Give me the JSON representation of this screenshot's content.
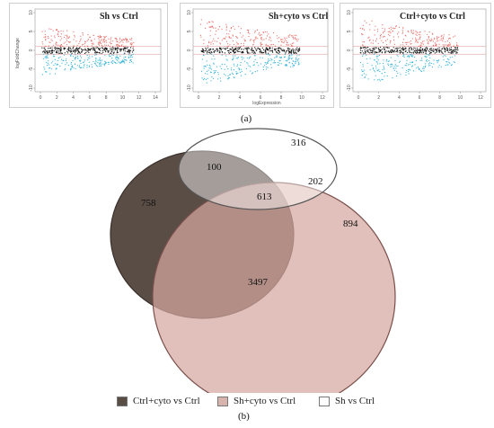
{
  "panel_a": {
    "label": "(a)",
    "y_axis_label": "logFoldChange",
    "x_axis_label": "logExpression",
    "plots": [
      {
        "title": "Sh vs Ctrl",
        "x_ticks": [
          "0",
          "2",
          "4",
          "6",
          "8",
          "10",
          "12",
          "14"
        ],
        "y_ticks": [
          "10",
          "5",
          "0",
          "-5",
          "-10"
        ],
        "x_range": [
          0,
          14
        ],
        "y_range": [
          -10,
          10
        ]
      },
      {
        "title": "Sh+cyto vs Ctrl",
        "x_ticks": [
          "0",
          "2",
          "4",
          "6",
          "8",
          "10",
          "12"
        ],
        "y_ticks": [
          "10",
          "5",
          "0",
          "-5",
          "-10"
        ],
        "x_range": [
          0,
          12
        ],
        "y_range": [
          -10,
          10
        ]
      },
      {
        "title": "Ctrl+cyto vs Ctrl",
        "x_ticks": [
          "0",
          "2",
          "4",
          "6",
          "8",
          "10",
          "12"
        ],
        "y_ticks": [
          "10",
          "5",
          "0",
          "-5",
          "-10"
        ],
        "x_range": [
          0,
          12
        ],
        "y_range": [
          -10,
          10
        ]
      }
    ],
    "colors": {
      "up": "#e8706a",
      "down": "#35b3d8",
      "ns": "#111111",
      "threshold_line": "#d58c8c"
    }
  },
  "panel_b": {
    "label": "(b)",
    "venn_counts": {
      "ctrl_cyto_only": "758",
      "sh_only": "316",
      "sh_cyto_only": "894",
      "ctrl_cyto_and_sh_only": "100",
      "sh_and_sh_cyto_only": "202",
      "all_three": "613",
      "ctrl_cyto_and_sh_cyto_only": "3497"
    },
    "legend": [
      {
        "label": "Ctrl+cyto vs Ctrl",
        "color": "#5a4d46"
      },
      {
        "label": "Sh+cyto vs Ctrl",
        "color": "#d6b4ad"
      },
      {
        "label": "Sh vs Ctrl",
        "color": "#ffffff"
      }
    ]
  }
}
